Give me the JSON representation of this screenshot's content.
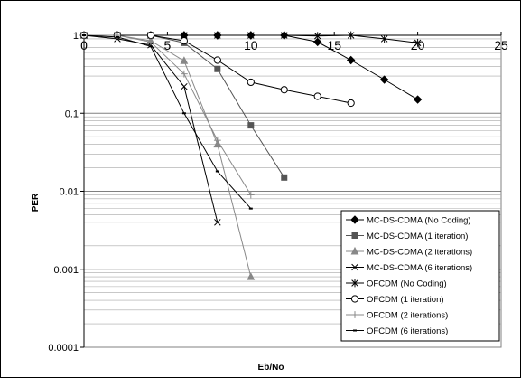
{
  "chart_data": {
    "type": "line",
    "title": "",
    "xlabel": "Eb/No",
    "ylabel": "PER",
    "xlim": [
      0,
      25
    ],
    "ylim": [
      0.0001,
      1
    ],
    "y_scale": "log",
    "x_ticks": [
      "0",
      "5",
      "10",
      "15",
      "20",
      "25"
    ],
    "y_ticks": [
      "1",
      "0.1",
      "0.01",
      "0.001",
      "0.0001"
    ],
    "grid": true,
    "legend_position": "bottom-right",
    "series": [
      {
        "name": "MC-DS-CDMA (No Coding)",
        "marker": "diamond",
        "color": "#000000",
        "x": [
          0,
          2,
          4,
          6,
          8,
          10,
          12,
          14,
          16,
          18,
          20
        ],
        "y": [
          1,
          1,
          1,
          1,
          1,
          1,
          1,
          0.82,
          0.48,
          0.27,
          0.15
        ]
      },
      {
        "name": "MC-DS-CDMA (1 iteration)",
        "marker": "square",
        "color": "#555555",
        "x": [
          0,
          2,
          4,
          6,
          8,
          10,
          12
        ],
        "y": [
          1,
          1,
          1,
          0.8,
          0.37,
          0.07,
          0.015
        ]
      },
      {
        "name": "MC-DS-CDMA (2 iterations)",
        "marker": "triangle",
        "color": "#888888",
        "x": [
          0,
          2,
          4,
          6,
          8,
          10
        ],
        "y": [
          1,
          1,
          0.85,
          0.47,
          0.04,
          0.0008
        ]
      },
      {
        "name": "MC-DS-CDMA (6 iterations)",
        "marker": "x",
        "color": "#000000",
        "x": [
          0,
          2,
          4,
          6,
          8
        ],
        "y": [
          1,
          0.9,
          0.75,
          0.22,
          0.004
        ]
      },
      {
        "name": "OFCDM (No Coding)",
        "marker": "star",
        "color": "#000000",
        "x": [
          0,
          2,
          4,
          6,
          8,
          10,
          12,
          14,
          16,
          18,
          20
        ],
        "y": [
          1,
          1,
          1,
          1,
          1,
          1,
          1,
          0.98,
          1,
          0.9,
          0.8
        ]
      },
      {
        "name": "OFCDM (1 iteration)",
        "marker": "circle",
        "color": "#000000",
        "x": [
          0,
          2,
          4,
          6,
          8,
          10,
          12,
          14,
          16
        ],
        "y": [
          1,
          1,
          1,
          0.85,
          0.48,
          0.25,
          0.2,
          0.165,
          0.135
        ]
      },
      {
        "name": "OFCDM (2 iterations)",
        "marker": "plus",
        "color": "#888888",
        "x": [
          0,
          2,
          4,
          6,
          8,
          10
        ],
        "y": [
          1,
          1,
          0.82,
          0.32,
          0.045,
          0.009
        ]
      },
      {
        "name": "OFCDM (6 iterations)",
        "marker": "dash",
        "color": "#000000",
        "x": [
          0,
          2,
          4,
          6,
          8,
          10
        ],
        "y": [
          1,
          0.95,
          0.72,
          0.1,
          0.018,
          0.006
        ]
      }
    ]
  }
}
